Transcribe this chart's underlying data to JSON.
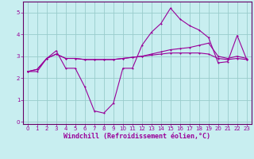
{
  "xlabel": "Windchill (Refroidissement éolien,°C)",
  "background_color": "#c8eef0",
  "grid_color": "#99cccc",
  "line_color": "#990099",
  "spine_color": "#660066",
  "ylim": [
    -0.1,
    5.5
  ],
  "xlim": [
    -0.5,
    23.5
  ],
  "yticks": [
    0,
    1,
    2,
    3,
    4,
    5
  ],
  "xticks": [
    0,
    1,
    2,
    3,
    4,
    5,
    6,
    7,
    8,
    9,
    10,
    11,
    12,
    13,
    14,
    15,
    16,
    17,
    18,
    19,
    20,
    21,
    22,
    23
  ],
  "line1_x": [
    0,
    1,
    2,
    3,
    4,
    5,
    6,
    7,
    8,
    9,
    10,
    11,
    12,
    13,
    14,
    15,
    16,
    17,
    18,
    19,
    20,
    21,
    22,
    23
  ],
  "line1_y": [
    2.3,
    2.4,
    2.9,
    3.25,
    2.45,
    2.45,
    1.6,
    0.5,
    0.4,
    0.85,
    2.45,
    2.45,
    3.5,
    4.1,
    4.5,
    5.2,
    4.7,
    4.4,
    4.2,
    3.85,
    2.7,
    2.75,
    3.95,
    2.85
  ],
  "line2_x": [
    0,
    1,
    2,
    3,
    4,
    5,
    6,
    7,
    8,
    9,
    10,
    11,
    12,
    13,
    14,
    15,
    16,
    17,
    18,
    19,
    20,
    21,
    22,
    23
  ],
  "line2_y": [
    2.3,
    2.4,
    2.9,
    3.1,
    2.9,
    2.9,
    2.85,
    2.85,
    2.85,
    2.85,
    2.9,
    2.95,
    3.0,
    3.1,
    3.2,
    3.3,
    3.35,
    3.4,
    3.5,
    3.6,
    3.0,
    2.9,
    3.0,
    2.9
  ],
  "line3_x": [
    0,
    1,
    2,
    3,
    4,
    5,
    6,
    7,
    8,
    9,
    10,
    11,
    12,
    13,
    14,
    15,
    16,
    17,
    18,
    19,
    20,
    21,
    22,
    23
  ],
  "line3_y": [
    2.3,
    2.3,
    2.9,
    3.1,
    2.9,
    2.9,
    2.85,
    2.85,
    2.85,
    2.85,
    2.9,
    2.95,
    3.0,
    3.05,
    3.1,
    3.15,
    3.15,
    3.15,
    3.15,
    3.1,
    2.9,
    2.85,
    2.9,
    2.85
  ],
  "tick_fontsize": 5.0,
  "xlabel_fontsize": 6.0,
  "lw": 0.8,
  "ms": 2.0
}
